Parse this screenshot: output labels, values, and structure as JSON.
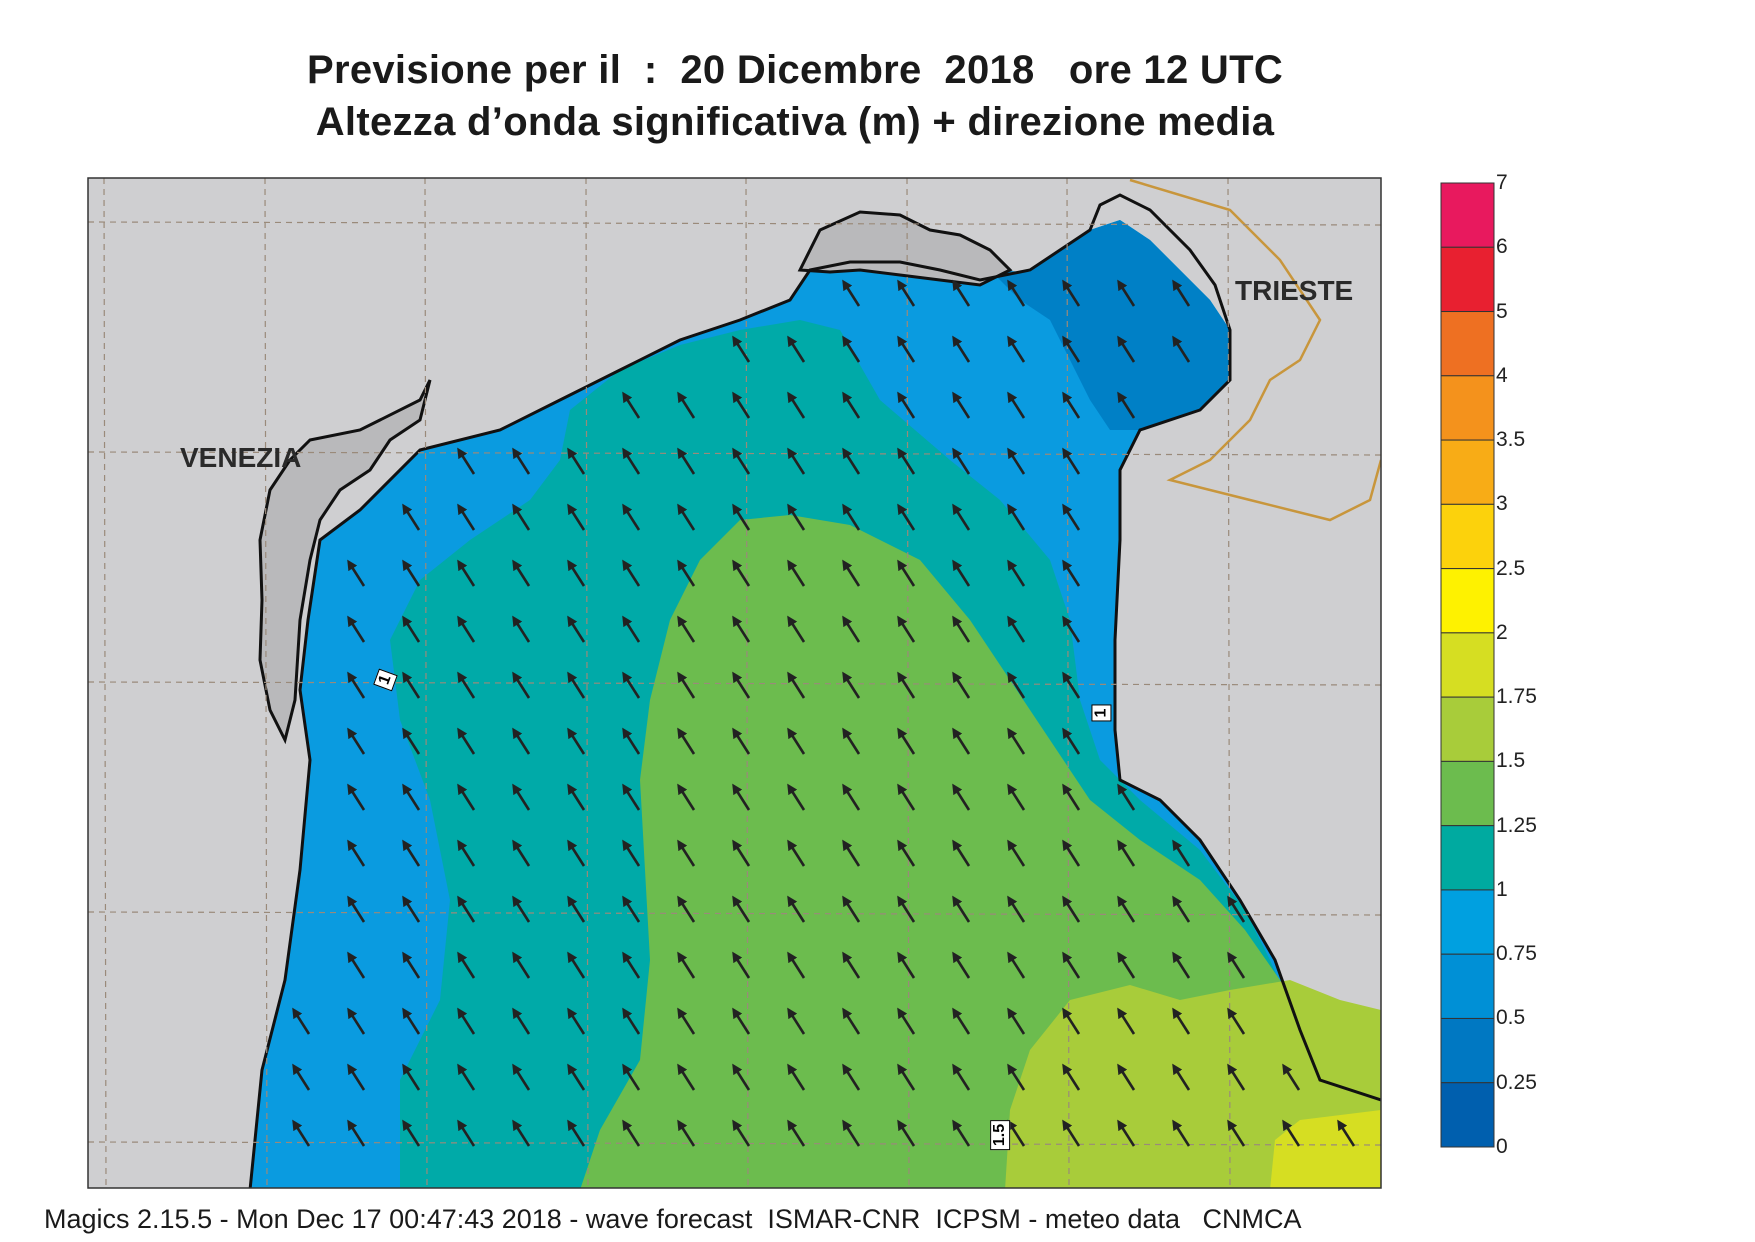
{
  "title": {
    "line1": "Previsione per il  :  20 Dicembre  2018   ore 12 UTC",
    "line2": "Altezza d’onda significativa (m) + direzione media"
  },
  "labels": {
    "venezia": "VENEZIA",
    "trieste": "TRIESTE"
  },
  "contour_labels": [
    "1",
    "1",
    "1.5"
  ],
  "colorbar": {
    "ticks": [
      "7",
      "6",
      "5",
      "4",
      "3.5",
      "3",
      "2.5",
      "2",
      "1.75",
      "1.5",
      "1.25",
      "1",
      "0.75",
      "0.5",
      "0.25",
      "0"
    ],
    "colors": [
      "#e8195e",
      "#e82030",
      "#ee7022",
      "#f4921c",
      "#f8ac16",
      "#fcd20c",
      "#fef200",
      "#d6de22",
      "#a8cc3a",
      "#6cbc4e",
      "#00aaa0",
      "#00a0e0",
      "#0090d6",
      "#0078c2",
      "#005fae"
    ]
  },
  "wave_arrow_direction": "NNW",
  "footer": "Magics 2.15.5 - Mon Dec 17 00:47:43 2018 - wave forecast  ISMAR-CNR  ICPSM - meteo data   CNMCA"
}
